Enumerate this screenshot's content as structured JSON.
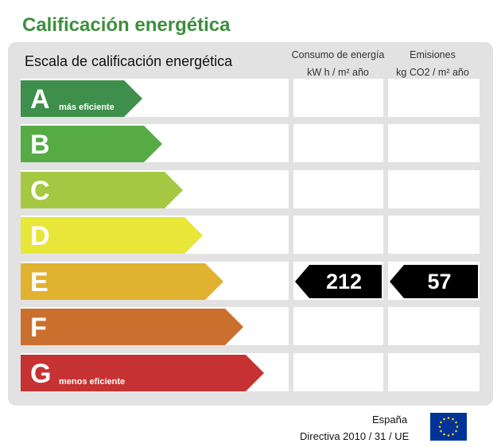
{
  "title": "Calificación energética",
  "scale_label": "Escala de calificación energética",
  "columns": {
    "consumption": {
      "line1": "Consumo de energía",
      "line2": "kW h / m² año"
    },
    "emissions": {
      "line1": "Emisiones",
      "line2": "kg CO2 / m² año"
    }
  },
  "ratings": [
    {
      "letter": "A",
      "sub": "más eficiente",
      "color": "#3e8f4c"
    },
    {
      "letter": "B",
      "sub": "",
      "color": "#56ab45"
    },
    {
      "letter": "C",
      "sub": "",
      "color": "#a5c843"
    },
    {
      "letter": "D",
      "sub": "",
      "color": "#e7e639"
    },
    {
      "letter": "E",
      "sub": "",
      "color": "#e0b230"
    },
    {
      "letter": "F",
      "sub": "",
      "color": "#cb6f2e"
    },
    {
      "letter": "G",
      "sub": "menos eficiente",
      "color": "#c63232"
    }
  ],
  "result": {
    "rating": "E",
    "consumption_value": "212",
    "emissions_value": "57"
  },
  "footer": {
    "country": "España",
    "directive": "Directiva 2010 / 31 / UE"
  },
  "colors": {
    "title": "#3d8f3d",
    "panel": "#e2e2e2",
    "marker": "#000000",
    "eu_blue": "#003399",
    "eu_star": "#ffcc00"
  },
  "icons": {
    "flag": "eu-flag-icon"
  }
}
